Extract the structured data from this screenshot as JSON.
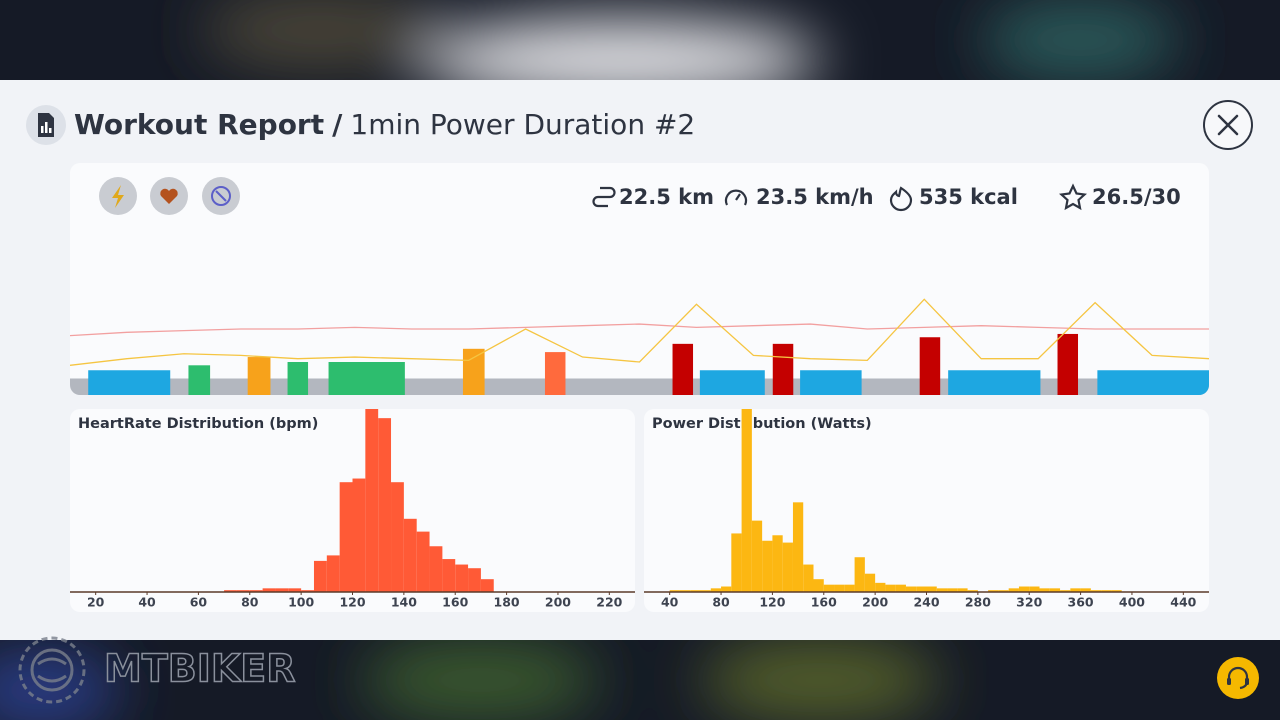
{
  "header": {
    "title": "Workout Report",
    "separator": "/",
    "subtitle": "1min Power Duration #2"
  },
  "stats": [
    "22.5 km",
    "23.5 km/h",
    "535 kcal",
    "26.5/30"
  ],
  "watermark": "MTBIKER",
  "chart_data": [
    {
      "type": "timeline",
      "xlim": [
        0,
        100
      ],
      "ylim": [
        0,
        100
      ],
      "base": {
        "value": 10,
        "color": "#b3b7bf"
      },
      "intervals": [
        {
          "start": 1.6,
          "end": 8.8,
          "value": 15,
          "color": "#1ea7e1"
        },
        {
          "start": 10.4,
          "end": 12.3,
          "value": 18,
          "color": "#2dbd6e"
        },
        {
          "start": 15.6,
          "end": 17.6,
          "value": 23,
          "color": "#f7a21b"
        },
        {
          "start": 19.1,
          "end": 20.9,
          "value": 20,
          "color": "#2dbd6e"
        },
        {
          "start": 22.7,
          "end": 29.4,
          "value": 20,
          "color": "#2dbd6e"
        },
        {
          "start": 34.5,
          "end": 36.4,
          "value": 28,
          "color": "#f7a21b"
        },
        {
          "start": 41.7,
          "end": 43.5,
          "value": 26,
          "color": "#ff6a3d"
        },
        {
          "start": 52.9,
          "end": 54.7,
          "value": 31,
          "color": "#c40000"
        },
        {
          "start": 55.3,
          "end": 61.0,
          "value": 15,
          "color": "#1ea7e1"
        },
        {
          "start": 61.7,
          "end": 63.5,
          "value": 31,
          "color": "#c40000"
        },
        {
          "start": 64.1,
          "end": 69.5,
          "value": 15,
          "color": "#1ea7e1"
        },
        {
          "start": 74.6,
          "end": 76.4,
          "value": 35,
          "color": "#c40000"
        },
        {
          "start": 77.1,
          "end": 85.2,
          "value": 15,
          "color": "#1ea7e1"
        },
        {
          "start": 86.7,
          "end": 88.5,
          "value": 37,
          "color": "#c40000"
        },
        {
          "start": 90.2,
          "end": 100,
          "value": 15,
          "color": "#1ea7e1"
        }
      ],
      "series": [
        {
          "color": "#f2a0a0",
          "x": [
            0,
            5,
            10,
            15,
            20,
            25,
            30,
            35,
            40,
            45,
            50,
            55,
            60,
            65,
            70,
            75,
            80,
            85,
            90,
            95,
            100
          ],
          "values": [
            36,
            38,
            39,
            40,
            40,
            41,
            40,
            40,
            41,
            42,
            43,
            41,
            42,
            43,
            40,
            41,
            42,
            41,
            40,
            40,
            40
          ]
        },
        {
          "color": "#f5c542",
          "x": [
            0,
            5,
            10,
            15,
            20,
            25,
            30,
            35,
            40,
            45,
            50,
            55,
            60,
            65,
            70,
            75,
            80,
            85,
            90,
            95,
            100
          ],
          "values": [
            18,
            22,
            25,
            24,
            22,
            23,
            22,
            21,
            40,
            23,
            20,
            55,
            24,
            22,
            21,
            58,
            22,
            22,
            56,
            24,
            22
          ]
        }
      ]
    },
    {
      "type": "histogram",
      "title": "HeartRate Distribution (bpm)",
      "color": "#ff5a36",
      "bins": [
        70,
        75,
        80,
        85,
        90,
        95,
        100,
        105,
        110,
        115,
        120,
        125,
        130,
        135,
        140,
        145,
        150,
        155,
        160,
        165,
        170,
        175
      ],
      "values": [
        1,
        1,
        1,
        2,
        2,
        2,
        1,
        17,
        20,
        60,
        62,
        100,
        95,
        60,
        40,
        33,
        25,
        18,
        15,
        13,
        7
      ],
      "xlim": [
        10,
        230
      ],
      "xticks": [
        20,
        40,
        60,
        80,
        100,
        120,
        140,
        160,
        180,
        200,
        220
      ],
      "ylim": [
        0,
        100
      ]
    },
    {
      "type": "histogram",
      "title": "Power Distribution (Watts)",
      "color": "#fcb712",
      "bins": [
        40,
        48,
        56,
        64,
        72,
        80,
        88,
        96,
        104,
        112,
        120,
        128,
        136,
        144,
        152,
        160,
        168,
        176,
        184,
        192,
        200,
        208,
        216,
        224,
        232,
        240,
        248,
        256,
        264,
        272,
        280,
        288,
        296,
        304,
        312,
        320,
        328,
        336,
        344,
        352,
        360,
        368,
        376,
        384,
        392,
        400,
        408,
        416,
        424,
        432
      ],
      "values": [
        1,
        1,
        1,
        1,
        2,
        3,
        32,
        100,
        39,
        28,
        31,
        27,
        49,
        15,
        7,
        4,
        4,
        4,
        19,
        10,
        5,
        4,
        4,
        3,
        3,
        3,
        2,
        2,
        2,
        1,
        0,
        1,
        1,
        2,
        3,
        3,
        2,
        2,
        1,
        2,
        2,
        1,
        1,
        1,
        0,
        0,
        0,
        0,
        0
      ],
      "xlim": [
        20,
        460
      ],
      "xticks": [
        40,
        80,
        120,
        160,
        200,
        240,
        280,
        320,
        360,
        400,
        440
      ],
      "ylim": [
        0,
        100
      ]
    }
  ]
}
